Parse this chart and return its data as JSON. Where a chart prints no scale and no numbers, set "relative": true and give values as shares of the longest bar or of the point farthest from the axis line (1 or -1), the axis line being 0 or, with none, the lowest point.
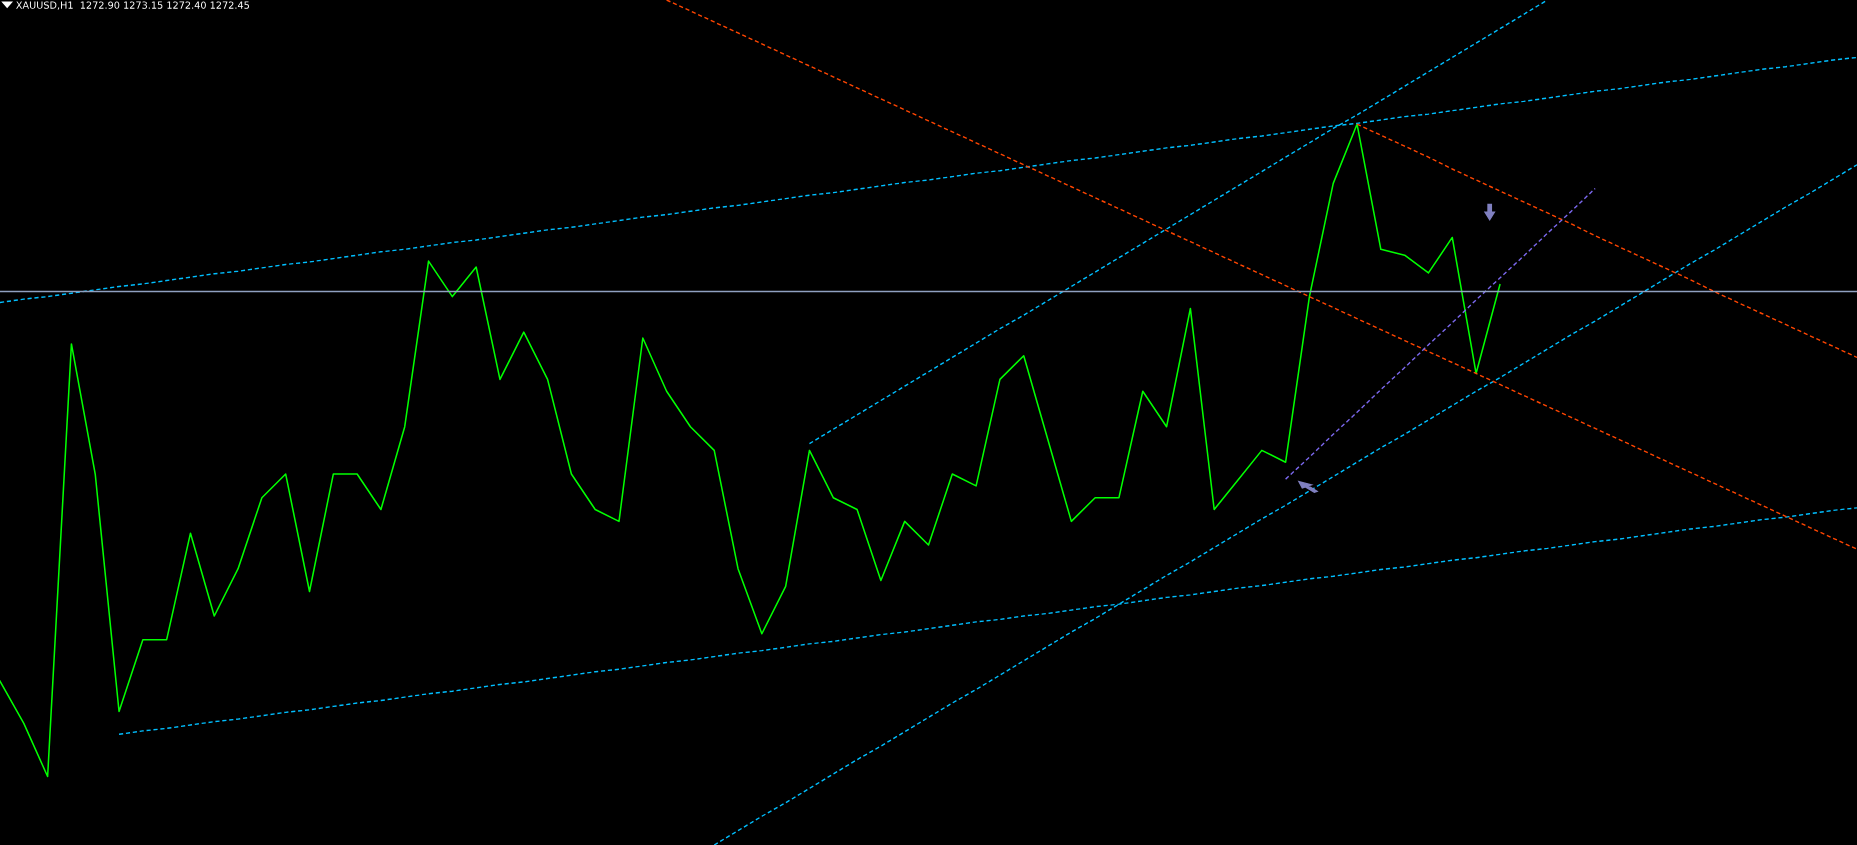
{
  "chart_data": {
    "type": "line",
    "title": "XAUUSD,H1  1272.90 1273.15 1272.40 1272.45",
    "relative": true,
    "marker": "none",
    "categories": [
      null,
      null,
      null,
      null,
      null,
      null,
      null,
      null,
      null,
      null,
      null,
      null,
      null,
      null,
      null,
      null,
      null,
      null,
      null,
      null,
      null,
      null,
      null,
      null,
      null,
      null,
      null,
      null,
      null,
      null,
      null,
      null,
      null,
      null,
      null,
      null,
      null,
      null,
      null,
      null,
      null,
      null,
      null,
      null,
      null,
      null,
      null,
      null,
      null,
      null,
      null,
      null,
      null,
      null,
      null,
      null,
      null,
      null,
      null,
      null,
      null,
      null,
      null,
      null,
      null,
      null,
      null,
      null,
      null,
      null,
      null,
      null,
      null,
      null,
      null,
      null,
      null,
      null,
      null
    ],
    "series": [
      {
        "color": "#00ff00",
        "line_style": "solid",
        "values": [
          0.194,
          0.144,
          0.081,
          0.593,
          0.439,
          0.158,
          0.243,
          0.243,
          0.369,
          0.271,
          0.327,
          0.411,
          0.439,
          0.3,
          0.439,
          0.439,
          0.397,
          0.495,
          0.691,
          0.649,
          0.684,
          0.551,
          0.607,
          0.551,
          0.439,
          0.397,
          0.383,
          0.6,
          0.537,
          0.495,
          0.467,
          0.327,
          0.25,
          0.306,
          0.467,
          0.411,
          0.397,
          0.313,
          0.383,
          0.355,
          0.439,
          0.425,
          0.551,
          0.579,
          0.481,
          0.383,
          0.411,
          0.411,
          0.537,
          0.495,
          0.635,
          0.397,
          0.432,
          0.467,
          0.453,
          0.649,
          0.783,
          0.853,
          0.705,
          0.698,
          0.677,
          0.719,
          0.558,
          0.663,
          null,
          null,
          null,
          null,
          null,
          null,
          null,
          null,
          null,
          null,
          null,
          null,
          null,
          null,
          null
        ]
      },
      {
        "color": "#00bfff",
        "line_style": "dashed",
        "values": [
          0.642,
          0.646,
          0.649,
          0.653,
          0.657,
          0.661,
          0.664,
          0.668,
          0.672,
          0.676,
          0.679,
          0.683,
          0.687,
          0.69,
          0.694,
          0.698,
          0.702,
          0.705,
          0.709,
          0.713,
          0.716,
          0.72,
          0.724,
          0.728,
          0.731,
          0.735,
          0.739,
          0.743,
          0.746,
          0.75,
          0.754,
          0.757,
          0.761,
          0.765,
          0.769,
          0.772,
          0.776,
          0.78,
          0.784,
          0.787,
          0.791,
          0.795,
          0.798,
          0.802,
          0.806,
          0.81,
          0.813,
          0.817,
          0.821,
          0.825,
          0.828,
          0.832,
          0.836,
          0.839,
          0.843,
          0.847,
          0.851,
          0.854,
          0.858,
          0.862,
          0.865,
          0.869,
          0.873,
          0.877,
          0.88,
          0.884,
          0.888,
          0.892,
          0.895,
          0.899,
          0.903,
          0.906,
          0.91,
          0.914,
          0.918,
          0.921,
          0.925,
          0.929,
          0.932
        ]
      },
      {
        "color": "#00bfff",
        "line_style": "dashed",
        "values": [
          null,
          null,
          null,
          null,
          null,
          0.131,
          0.135,
          0.138,
          0.142,
          0.146,
          0.149,
          0.153,
          0.157,
          0.16,
          0.164,
          0.168,
          0.171,
          0.175,
          0.179,
          0.182,
          0.186,
          0.19,
          0.193,
          0.197,
          0.201,
          0.205,
          0.208,
          0.212,
          0.216,
          0.219,
          0.223,
          0.227,
          0.23,
          0.234,
          0.238,
          0.241,
          0.245,
          0.249,
          0.252,
          0.256,
          0.26,
          0.264,
          0.267,
          0.271,
          0.274,
          0.278,
          0.282,
          0.285,
          0.289,
          0.293,
          0.296,
          0.3,
          0.304,
          0.307,
          0.311,
          0.315,
          0.318,
          0.322,
          0.326,
          0.329,
          0.333,
          0.337,
          0.34,
          0.344,
          0.348,
          0.351,
          0.355,
          0.359,
          0.362,
          0.366,
          0.37,
          0.374,
          0.377,
          0.381,
          0.385,
          0.388,
          0.392,
          0.396,
          0.399
        ]
      },
      {
        "color": "#00bfff",
        "line_style": "dashed",
        "values": [
          null,
          null,
          null,
          null,
          null,
          null,
          null,
          null,
          null,
          null,
          null,
          null,
          null,
          null,
          null,
          null,
          null,
          null,
          null,
          null,
          null,
          null,
          null,
          null,
          null,
          null,
          null,
          null,
          null,
          null,
          0,
          0.017,
          0.034,
          0.05,
          0.067,
          0.084,
          0.101,
          0.117,
          0.134,
          0.151,
          0.168,
          0.184,
          0.201,
          0.218,
          0.235,
          0.252,
          0.268,
          0.285,
          0.302,
          0.319,
          0.335,
          0.352,
          0.369,
          0.386,
          0.402,
          0.419,
          0.436,
          0.453,
          0.47,
          0.486,
          0.503,
          0.52,
          0.537,
          0.553,
          0.57,
          0.587,
          0.604,
          0.62,
          0.637,
          0.654,
          0.671,
          0.688,
          0.704,
          0.721,
          0.738,
          0.755,
          0.771,
          0.788,
          0.805
        ]
      },
      {
        "color": "#00bfff",
        "line_style": "dashed",
        "values": [
          null,
          null,
          null,
          null,
          null,
          null,
          null,
          null,
          null,
          null,
          null,
          null,
          null,
          null,
          null,
          null,
          null,
          null,
          null,
          null,
          null,
          null,
          null,
          null,
          null,
          null,
          null,
          null,
          null,
          null,
          null,
          null,
          null,
          null,
          0.475,
          0.492,
          0.509,
          0.526,
          0.543,
          0.56,
          0.577,
          0.594,
          0.611,
          0.627,
          0.644,
          0.661,
          0.678,
          0.695,
          0.712,
          0.729,
          0.746,
          0.763,
          0.78,
          0.797,
          0.814,
          0.831,
          0.848,
          0.864,
          0.881,
          0.898,
          0.915,
          0.932,
          0.949,
          0.966,
          0.983,
          1,
          null,
          null,
          null,
          null,
          null,
          null,
          null,
          null,
          null,
          null,
          null,
          null,
          null
        ]
      },
      {
        "color": "#ff4500",
        "line_style": "dashed",
        "values": [
          null,
          null,
          null,
          null,
          null,
          null,
          null,
          null,
          null,
          null,
          null,
          null,
          null,
          null,
          null,
          null,
          null,
          null,
          null,
          null,
          null,
          null,
          null,
          null,
          null,
          null,
          null,
          null,
          1,
          0.987,
          0.974,
          0.961,
          0.948,
          0.935,
          0.922,
          0.909,
          0.896,
          0.883,
          0.87,
          0.857,
          0.844,
          0.831,
          0.818,
          0.805,
          0.792,
          0.779,
          0.766,
          0.753,
          0.74,
          0.727,
          0.714,
          0.701,
          0.688,
          0.675,
          0.662,
          0.649,
          0.636,
          0.623,
          0.61,
          0.597,
          0.584,
          0.571,
          0.558,
          0.545,
          0.532,
          0.519,
          0.506,
          0.493,
          0.48,
          0.467,
          0.454,
          0.441,
          0.428,
          0.415,
          0.402,
          0.389,
          0.376,
          0.363,
          0.35
        ]
      },
      {
        "color": "#ff4500",
        "line_style": "dashed",
        "values": [
          null,
          null,
          null,
          null,
          null,
          null,
          null,
          null,
          null,
          null,
          null,
          null,
          null,
          null,
          null,
          null,
          null,
          null,
          null,
          null,
          null,
          null,
          null,
          null,
          null,
          null,
          null,
          null,
          null,
          null,
          null,
          null,
          null,
          null,
          null,
          null,
          null,
          null,
          null,
          null,
          null,
          null,
          null,
          null,
          null,
          null,
          null,
          null,
          null,
          null,
          null,
          null,
          null,
          null,
          null,
          null,
          null,
          0.853,
          0.84,
          0.827,
          0.814,
          0.8,
          0.787,
          0.774,
          0.761,
          0.748,
          0.735,
          0.721,
          0.708,
          0.695,
          0.682,
          0.669,
          0.655,
          0.642,
          0.629,
          0.616,
          0.603,
          0.59,
          0.577
        ]
      },
      {
        "color": "#7b68ee",
        "line_style": "dashed",
        "values": [
          null,
          null,
          null,
          null,
          null,
          null,
          null,
          null,
          null,
          null,
          null,
          null,
          null,
          null,
          null,
          null,
          null,
          null,
          null,
          null,
          null,
          null,
          null,
          null,
          null,
          null,
          null,
          null,
          null,
          null,
          null,
          null,
          null,
          null,
          null,
          null,
          null,
          null,
          null,
          null,
          null,
          null,
          null,
          null,
          null,
          null,
          null,
          null,
          null,
          null,
          null,
          null,
          null,
          null,
          0.433,
          0.459,
          0.486,
          0.512,
          0.539,
          0.565,
          0.592,
          0.618,
          0.645,
          0.671,
          0.697,
          0.724,
          0.75,
          0.777,
          null,
          null,
          null,
          null,
          null,
          null,
          null,
          null,
          null,
          null,
          null
        ]
      }
    ],
    "ref_lines": [
      {
        "axis": "y",
        "value": 0.655,
        "color": "#8fa0c0",
        "line_style": "solid"
      }
    ]
  }
}
